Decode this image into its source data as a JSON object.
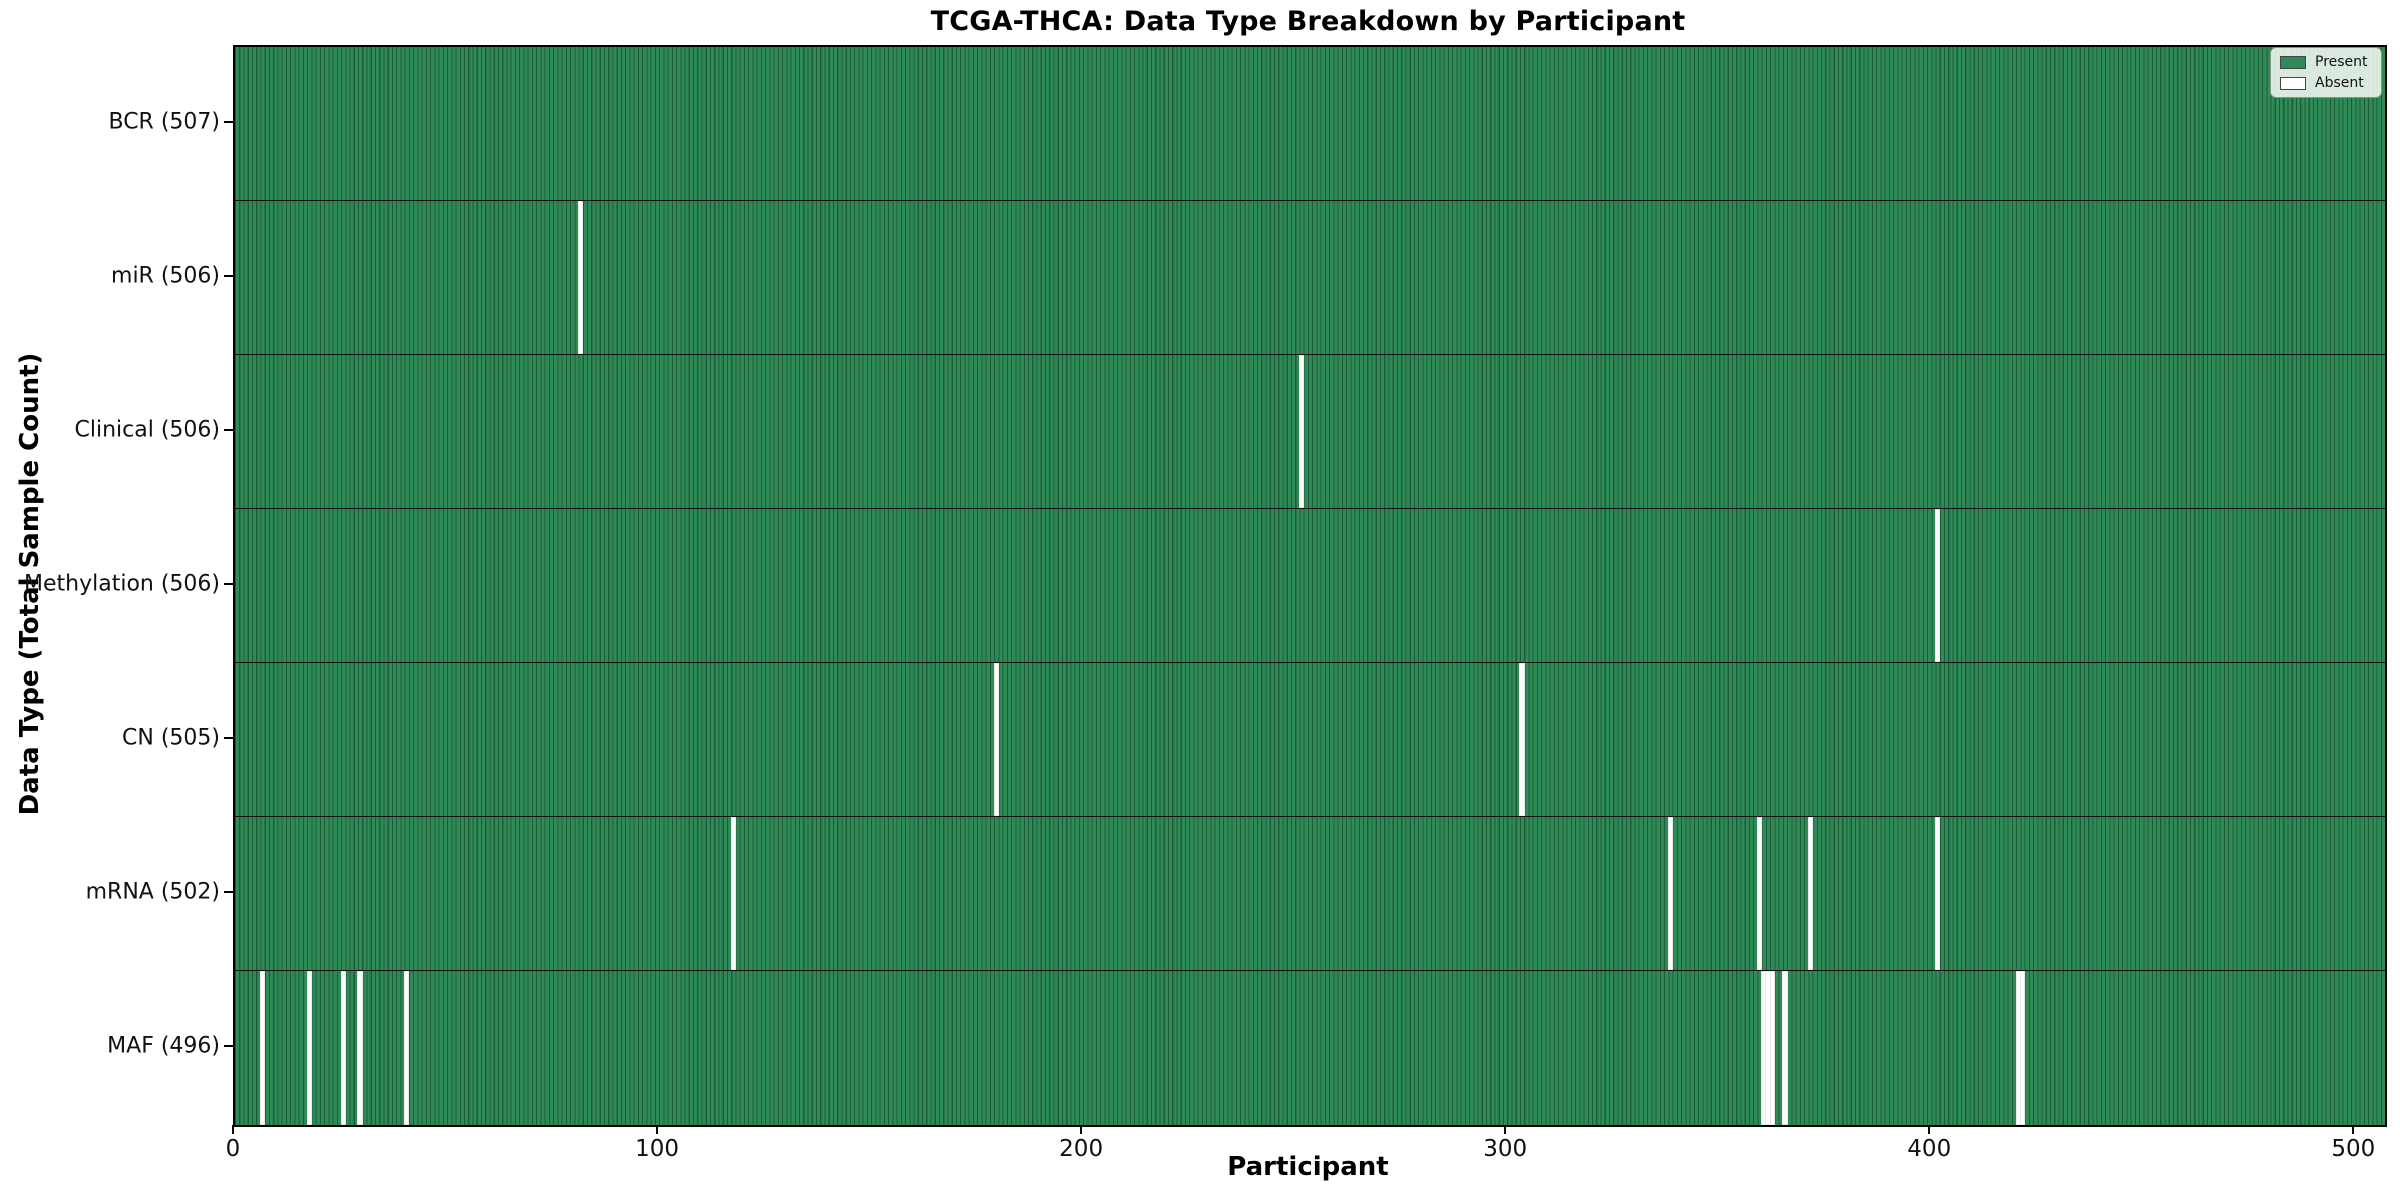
{
  "chart_data": {
    "type": "heatmap",
    "title": "TCGA-THCA: Data Type Breakdown by Participant",
    "xlabel": "Participant",
    "ylabel": "Data Type (Total Sample Count)",
    "n_participants": 507,
    "x_axis_range": [
      0,
      507
    ],
    "xticks": [
      0,
      100,
      200,
      300,
      400,
      500
    ],
    "legend_position": "upper right",
    "grid": false,
    "legend": [
      {
        "label": "Present",
        "color": "#2e8b57"
      },
      {
        "label": "Absent",
        "color": "#ffffff"
      }
    ],
    "colors": {
      "present": "#2e8b57",
      "bar_edge": "#1d5c39",
      "absent": "#ffffff",
      "spine": "#000000"
    },
    "rows": [
      {
        "label": "BCR (507)",
        "data_type": "BCR",
        "total": 507,
        "absent_participants": []
      },
      {
        "label": "miR (506)",
        "data_type": "miR",
        "total": 506,
        "absent_participants": [
          81
        ]
      },
      {
        "label": "Clinical (506)",
        "data_type": "Clinical",
        "total": 506,
        "absent_participants": [
          251
        ]
      },
      {
        "label": "Methylation (506)",
        "data_type": "Methylation",
        "total": 506,
        "absent_participants": [
          401
        ]
      },
      {
        "label": "CN (505)",
        "data_type": "CN",
        "total": 505,
        "absent_participants": [
          179,
          303
        ]
      },
      {
        "label": "mRNA (502)",
        "data_type": "mRNA",
        "total": 502,
        "absent_participants": [
          117,
          338,
          359,
          371,
          401
        ]
      },
      {
        "label": "MAF (496)",
        "data_type": "MAF",
        "total": 496,
        "absent_participants": [
          6,
          17,
          25,
          29,
          40,
          360,
          361,
          362,
          365,
          420,
          421
        ]
      }
    ]
  }
}
